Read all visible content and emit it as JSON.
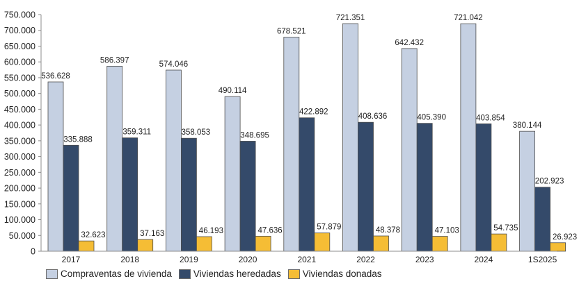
{
  "chart_data": {
    "type": "bar",
    "title": "",
    "xlabel": "",
    "ylabel": "",
    "ylim": [
      0,
      750000
    ],
    "y_ticks": [
      0,
      50000,
      100000,
      150000,
      200000,
      250000,
      300000,
      350000,
      400000,
      450000,
      500000,
      550000,
      600000,
      650000,
      700000,
      750000
    ],
    "y_tick_labels": [
      "0",
      "50.000",
      "100.000",
      "150.000",
      "200.000",
      "250.000",
      "300.000",
      "350.000",
      "400.000",
      "450.000",
      "500.000",
      "550.000",
      "600.000",
      "650.000",
      "700.000",
      "750.000"
    ],
    "grid": false,
    "legend_position": "bottom",
    "categories": [
      "2017",
      "2018",
      "2019",
      "2020",
      "2021",
      "2022",
      "2023",
      "2024",
      "1S2025"
    ],
    "series": [
      {
        "name": "Compraventas de vivienda",
        "color": "#c5d0e2",
        "values": [
          536628,
          586397,
          574046,
          490114,
          678521,
          721351,
          642432,
          721042,
          380144
        ],
        "labels": [
          "536.628",
          "586.397",
          "574.046",
          "490.114",
          "678.521",
          "721.351",
          "642.432",
          "721.042",
          "380.144"
        ]
      },
      {
        "name": "Viviendas heredadas",
        "color": "#344a6a",
        "values": [
          335888,
          359311,
          358053,
          348695,
          422892,
          408636,
          405390,
          403854,
          202923
        ],
        "labels": [
          "335.888",
          "359.311",
          "358.053",
          "348.695",
          "422.892",
          "408.636",
          "405.390",
          "403.854",
          "202.923"
        ]
      },
      {
        "name": "Viviendas donadas",
        "color": "#f5bd35",
        "values": [
          32623,
          37163,
          46193,
          47636,
          57879,
          48378,
          47103,
          54735,
          26923
        ],
        "labels": [
          "32.623",
          "37.163",
          "46.193",
          "47.636",
          "57.879",
          "48.378",
          "47.103",
          "54.735",
          "26.923"
        ]
      }
    ]
  },
  "legend": {
    "items": [
      {
        "label": "Compraventas de vivienda",
        "color": "#c5d0e2"
      },
      {
        "label": "Viviendas heredadas",
        "color": "#344a6a"
      },
      {
        "label": "Viviendas donadas",
        "color": "#f5bd35"
      }
    ]
  }
}
